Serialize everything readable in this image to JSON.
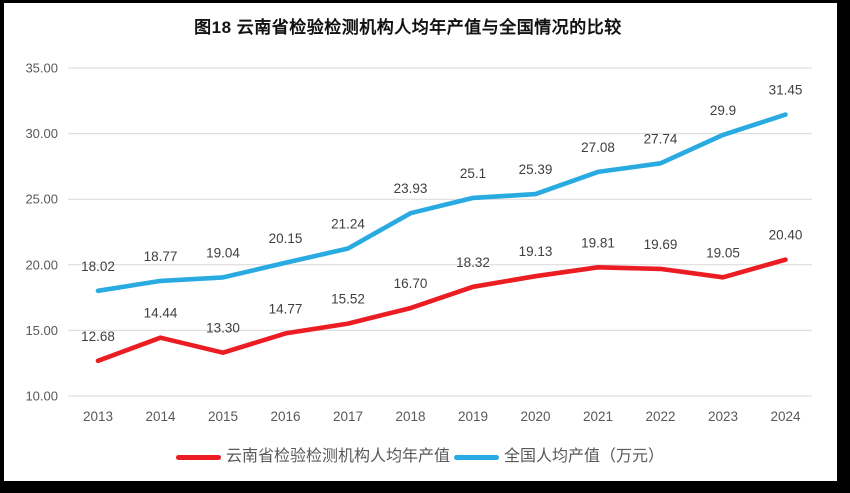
{
  "window": {
    "background": "#000000",
    "page_background": "#ffffff"
  },
  "chart_data": {
    "type": "line",
    "title": "图18  云南省检验检测机构人均年产值与全国情况的比较",
    "categories": [
      "2013",
      "2014",
      "2015",
      "2016",
      "2017",
      "2018",
      "2019",
      "2020",
      "2021",
      "2022",
      "2023",
      "2024"
    ],
    "series": [
      {
        "name": "云南省检验检测机构人均年产值",
        "color": "#ec1c23",
        "values": [
          12.68,
          14.44,
          13.3,
          14.77,
          15.52,
          16.7,
          18.32,
          19.13,
          19.81,
          19.69,
          19.05,
          20.4
        ],
        "labels": [
          "12.68",
          "14.44",
          "13.30",
          "14.77",
          "15.52",
          "16.70",
          "18.32",
          "19.13",
          "19.81",
          "19.69",
          "19.05",
          "20.40"
        ]
      },
      {
        "name": "全国人均产值（万元）",
        "color": "#29abe2",
        "values": [
          18.02,
          18.77,
          19.04,
          20.15,
          21.24,
          23.93,
          25.1,
          25.39,
          27.08,
          27.74,
          29.9,
          31.45
        ],
        "labels": [
          "18.02",
          "18.77",
          "19.04",
          "20.15",
          "21.24",
          "23.93",
          "25.1",
          "25.39",
          "27.08",
          "27.74",
          "29.9",
          "31.45"
        ]
      }
    ],
    "xlabel": "",
    "ylabel": "",
    "ylim": [
      10,
      35
    ],
    "yticks": [
      {
        "value": 10,
        "label": "10.00"
      },
      {
        "value": 15,
        "label": "15.00"
      },
      {
        "value": 20,
        "label": "20.00"
      },
      {
        "value": 25,
        "label": "25.00"
      },
      {
        "value": 30,
        "label": "30.00"
      },
      {
        "value": 35,
        "label": "35.00"
      }
    ],
    "grid": "horizontal-only",
    "legend_position": "bottom",
    "colors": {
      "gridline": "#d9d9d9",
      "axis_labels": "#595959",
      "data_labels": "#3f3f3f",
      "legend_text": "#595959"
    }
  }
}
